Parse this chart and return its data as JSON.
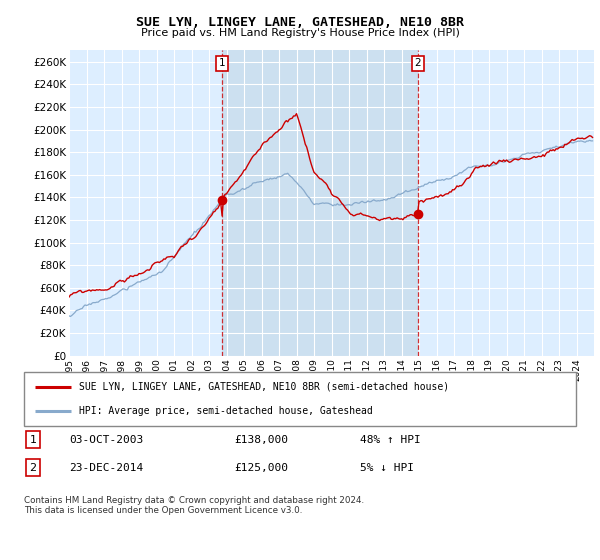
{
  "title": "SUE LYN, LINGEY LANE, GATESHEAD, NE10 8BR",
  "subtitle": "Price paid vs. HM Land Registry's House Price Index (HPI)",
  "ylim": [
    0,
    270000
  ],
  "sale1_date": "03-OCT-2003",
  "sale1_price": 138000,
  "sale1_year": 2003.75,
  "sale1_hpi_text": "48% ↑ HPI",
  "sale2_date": "23-DEC-2014",
  "sale2_price": 125000,
  "sale2_year": 2014.92,
  "sale2_hpi_text": "5% ↓ HPI",
  "legend_line1": "SUE LYN, LINGEY LANE, GATESHEAD, NE10 8BR (semi-detached house)",
  "legend_line2": "HPI: Average price, semi-detached house, Gateshead",
  "footer": "Contains HM Land Registry data © Crown copyright and database right 2024.\nThis data is licensed under the Open Government Licence v3.0.",
  "line_color_red": "#cc0000",
  "line_color_blue": "#88aacc",
  "bg_color": "#ddeeff",
  "highlight_color": "#cce0f0",
  "sale_marker_color": "#cc0000",
  "grid_color": "#ffffff",
  "xstart": 1995,
  "xend": 2025
}
